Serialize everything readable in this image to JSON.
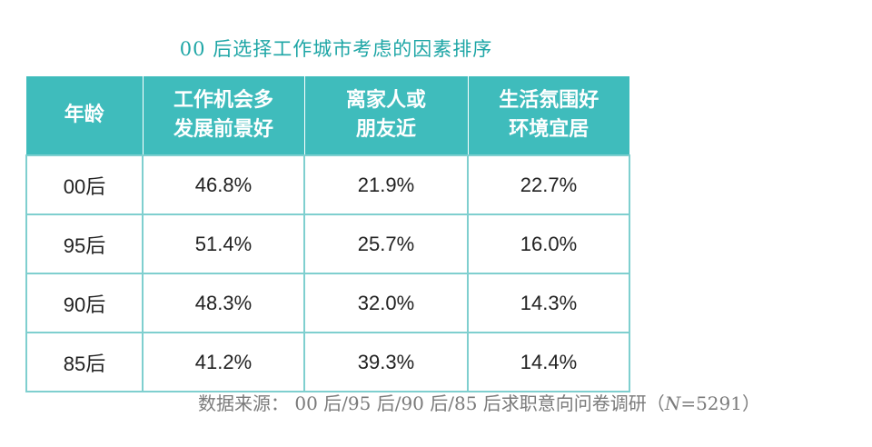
{
  "chart_data": {
    "type": "table",
    "title": "00 后选择工作城市考虑的因素排序",
    "header": {
      "age": "年龄",
      "col1_lines": [
        "工作机会多",
        "发展前景好"
      ],
      "col2_lines": [
        "离家人或",
        "朋友近"
      ],
      "col3_lines": [
        "生活氛围好",
        "环境宜居"
      ]
    },
    "rows": [
      {
        "age": "00后",
        "values": [
          "46.8%",
          "21.9%",
          "22.7%"
        ]
      },
      {
        "age": "95后",
        "values": [
          "51.4%",
          "25.7%",
          "16.0%"
        ]
      },
      {
        "age": "90后",
        "values": [
          "48.3%",
          "32.0%",
          "14.3%"
        ]
      },
      {
        "age": "85后",
        "values": [
          "41.2%",
          "39.3%",
          "14.4%"
        ]
      }
    ],
    "source": {
      "prefix": "数据来源：  00 后/95 后/90 后/85 后求职意向问卷调研（",
      "n_symbol": "N",
      "n_value": "=5291）"
    }
  },
  "colors": {
    "title": "#1ea6a6",
    "header_bg": "#3fbcbc",
    "header_text": "#ffffff",
    "border": "#7fcfcf",
    "source_text": "#7a7a7a"
  }
}
